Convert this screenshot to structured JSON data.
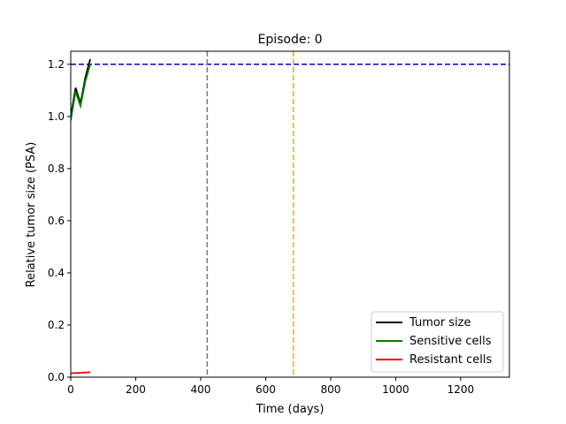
{
  "chart_data": {
    "type": "line",
    "title": "Episode: 0",
    "xlabel": "Time (days)",
    "ylabel": "Relative tumor size (PSA)",
    "xlim": [
      0,
      1350
    ],
    "ylim": [
      0,
      1.25
    ],
    "xticks": [
      0,
      200,
      400,
      600,
      800,
      1000,
      1200
    ],
    "yticks": [
      0.0,
      0.2,
      0.4,
      0.6,
      0.8,
      1.0,
      1.2
    ],
    "xtick_labels": [
      "0",
      "200",
      "400",
      "600",
      "800",
      "1000",
      "1200"
    ],
    "ytick_labels": [
      "0.0",
      "0.2",
      "0.4",
      "0.6",
      "0.8",
      "1.0",
      "1.2"
    ],
    "grid": false,
    "legend_position": "bottom-right",
    "series": [
      {
        "name": "Tumor size",
        "color": "#000000",
        "x": [
          0,
          15,
          30,
          45,
          60
        ],
        "y": [
          1.0,
          1.11,
          1.05,
          1.15,
          1.22
        ]
      },
      {
        "name": "Sensitive cells",
        "color": "#008000",
        "x": [
          0,
          15,
          30,
          45,
          60
        ],
        "y": [
          0.985,
          1.095,
          1.04,
          1.135,
          1.2
        ]
      },
      {
        "name": "Resistant cells",
        "color": "#ff0000",
        "x": [
          0,
          15,
          30,
          45,
          60
        ],
        "y": [
          0.015,
          0.016,
          0.017,
          0.018,
          0.019
        ]
      }
    ],
    "reference_lines": [
      {
        "orientation": "horizontal",
        "value": 1.2,
        "color": "#0000cc",
        "style": "dashed"
      },
      {
        "orientation": "vertical",
        "value": 420,
        "color": "#808080",
        "style": "dashed"
      },
      {
        "orientation": "vertical",
        "value": 685,
        "color": "#ffa500",
        "style": "dashed"
      }
    ]
  }
}
